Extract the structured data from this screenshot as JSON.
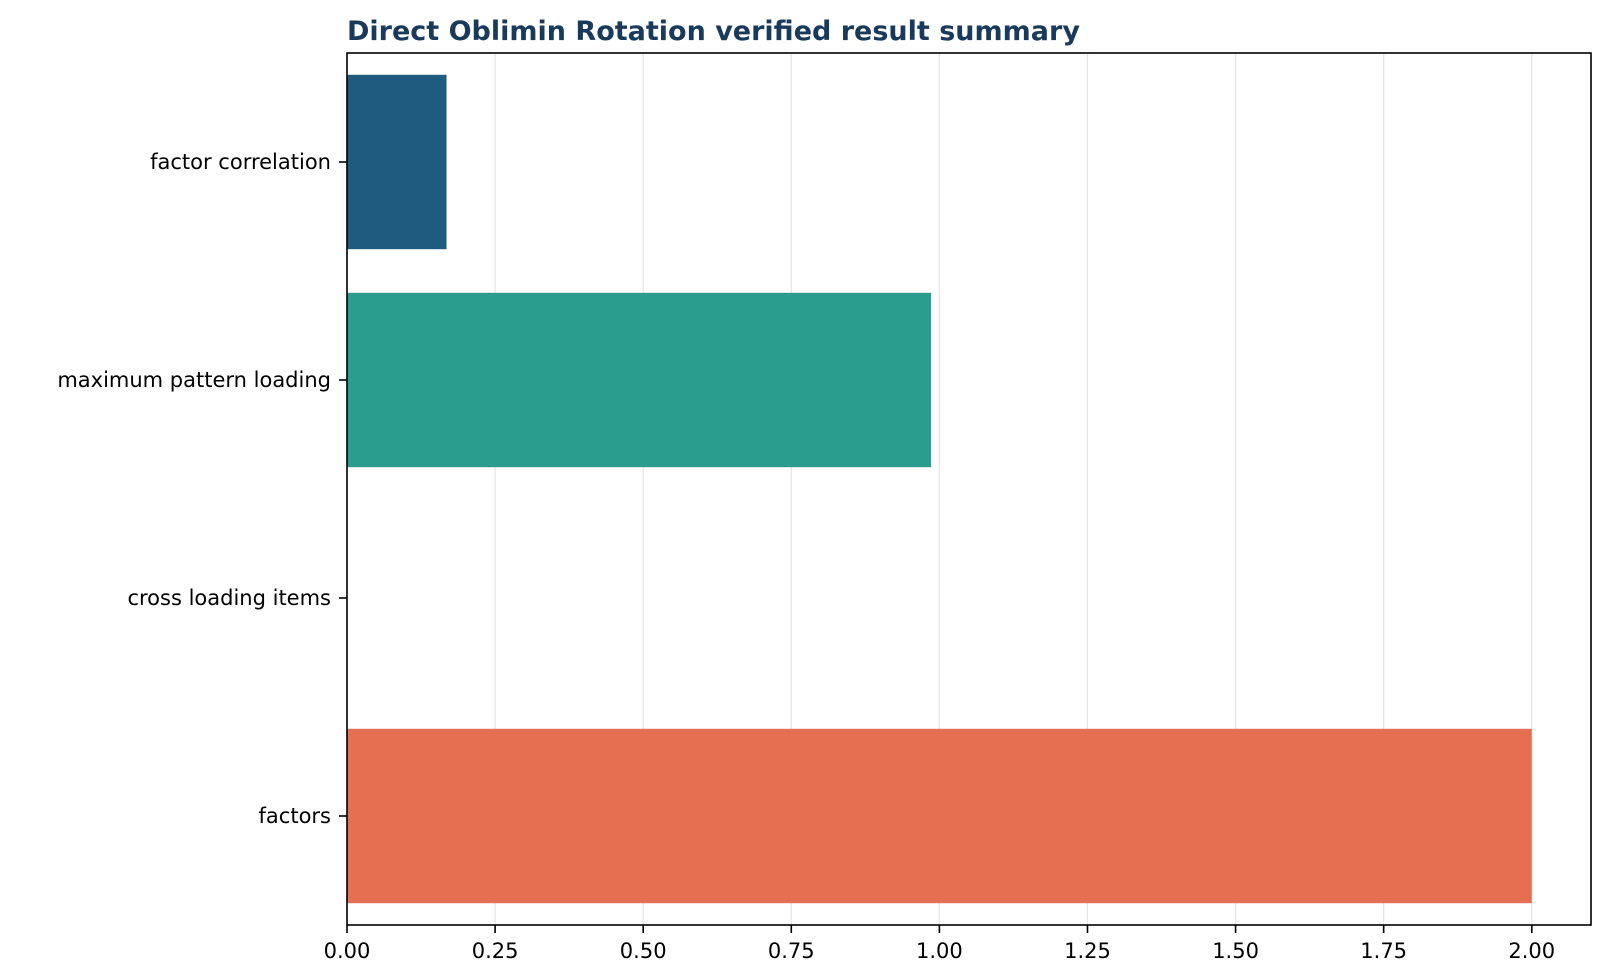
{
  "chart_data": {
    "type": "bar",
    "orientation": "horizontal",
    "title": "Direct Oblimin Rotation verified result summary",
    "xlabel": "",
    "ylabel": "",
    "categories": [
      "factor correlation",
      "maximum pattern loading",
      "cross loading items",
      "factors"
    ],
    "values": [
      0.168,
      0.986,
      0,
      2
    ],
    "colors": [
      "#1f5a7f",
      "#2a9d8f",
      "#e9c46a",
      "#e76f51"
    ],
    "xlim": [
      0,
      2.1
    ],
    "xticks": [
      0,
      0.25,
      0.5,
      0.75,
      1.0,
      1.25,
      1.5,
      1.75,
      2.0
    ],
    "xtick_labels": [
      "0.00",
      "0.25",
      "0.50",
      "0.75",
      "1.00",
      "1.25",
      "1.50",
      "1.75",
      "2.00"
    ],
    "grid": "x",
    "legend": "none"
  }
}
